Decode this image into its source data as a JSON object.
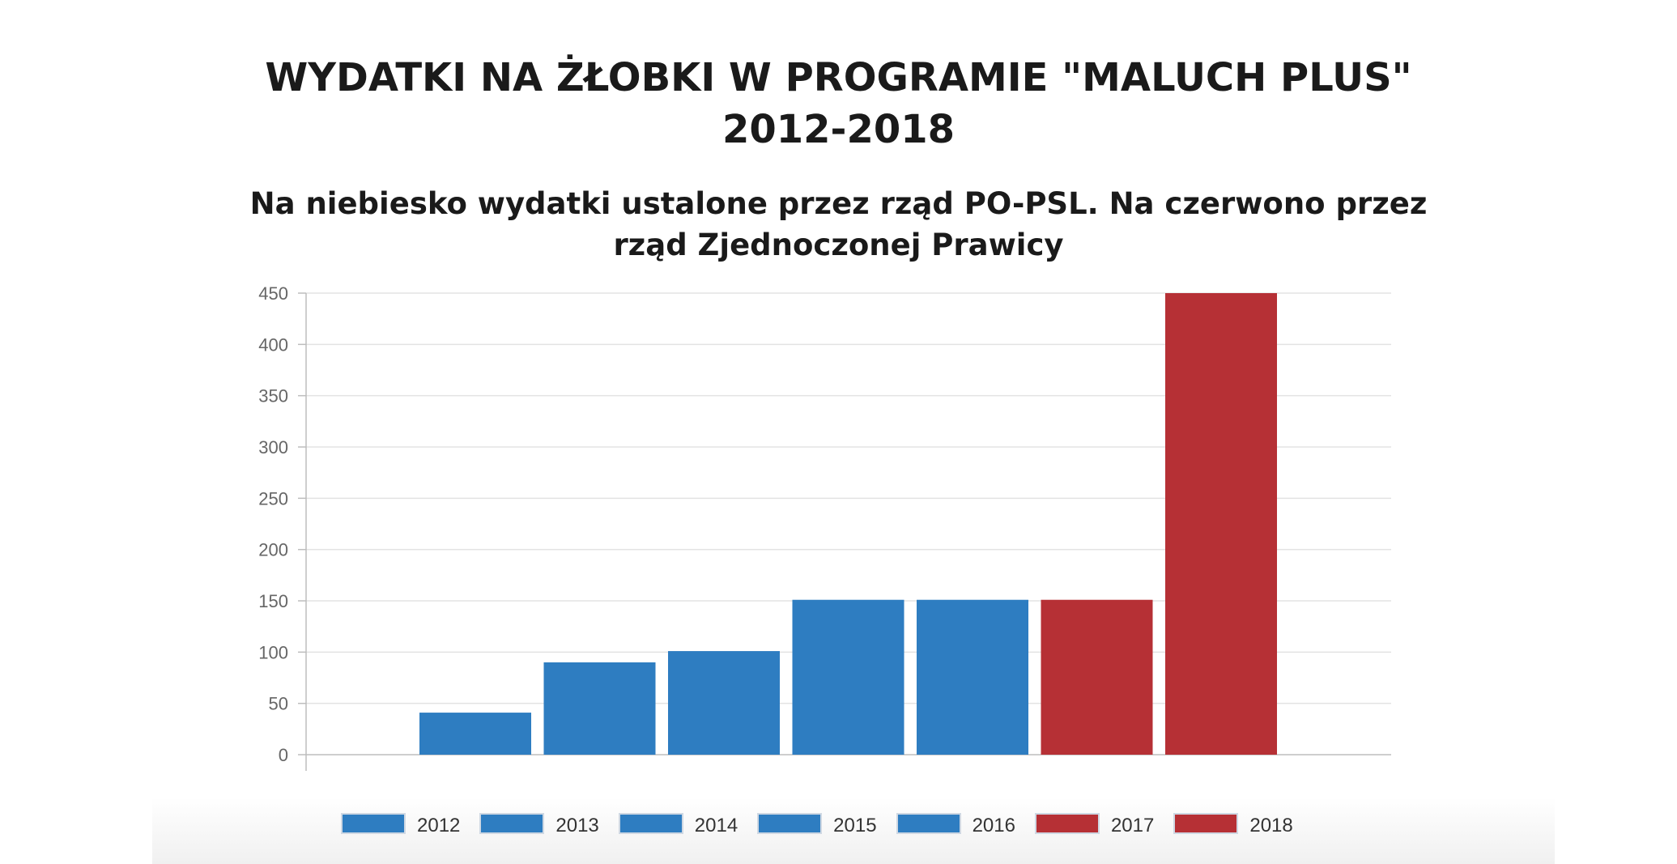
{
  "colors": {
    "po_psl": "#2e7dc1",
    "zp": "#b63035"
  },
  "chart_data": {
    "type": "bar",
    "title": "WYDATKI NA ŻŁOBKI W PROGRAMIE \"MALUCH PLUS\"",
    "title_line2": "2012-2018",
    "subtitle": "Na niebiesko wydatki ustalone przez rząd PO-PSL. Na czerwono przez rząd Zjednoczonej Prawicy",
    "categories": [
      "2012",
      "2013",
      "2014",
      "2015",
      "2016",
      "2017",
      "2018"
    ],
    "values": [
      41,
      90,
      101,
      151,
      151,
      151,
      450
    ],
    "bar_colors": [
      "#2e7dc1",
      "#2e7dc1",
      "#2e7dc1",
      "#2e7dc1",
      "#2e7dc1",
      "#b63035",
      "#b63035"
    ],
    "ylim": [
      0,
      450
    ],
    "yticks": [
      0,
      50,
      100,
      150,
      200,
      250,
      300,
      350,
      400,
      450
    ],
    "grid": true,
    "legend_position": "bottom",
    "xlabel": "",
    "ylabel": ""
  }
}
